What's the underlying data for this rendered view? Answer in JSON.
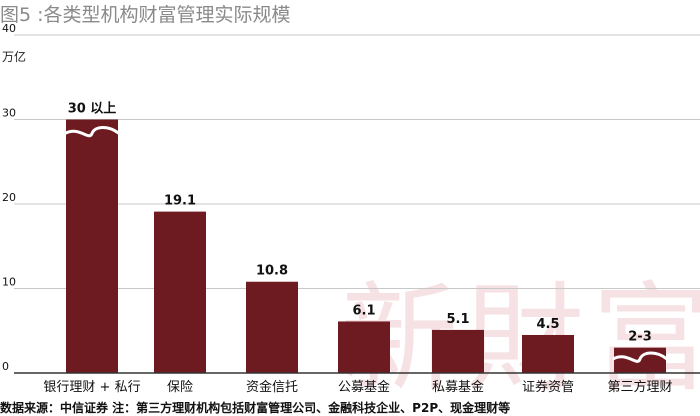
{
  "title": "图5 :各类型机构财富管理实际规模",
  "unit": "万亿",
  "source_note": "数据来源：中信证券 注：第三方理财机构包括财富管理公司、金融科技企业、P2P、现金理财等",
  "watermark": "新財富",
  "colors": {
    "bar": "#6e1a21",
    "grid": "#c8c8c8",
    "axis": "#333333",
    "text": "#111111"
  },
  "chart_data": {
    "type": "bar",
    "categories": [
      "银行理财 + 私行",
      "保险",
      "资金信托",
      "公募基金",
      "私募基金",
      "证券资管",
      "第三方理财"
    ],
    "values": [
      30,
      19.1,
      10.8,
      6.1,
      5.1,
      4.5,
      3
    ],
    "data_labels": [
      "30 以上",
      "19.1",
      "10.8",
      "6.1",
      "5.1",
      "4.5",
      "2-3"
    ],
    "broken_bars": [
      0,
      6
    ],
    "ylim": [
      0,
      40
    ],
    "yticks": [
      0,
      10,
      20,
      30,
      40
    ],
    "ylabel": "万亿",
    "grid": true
  }
}
